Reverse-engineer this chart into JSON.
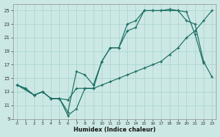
{
  "xlabel": "Humidex (Indice chaleur)",
  "bg_color": "#cce8e4",
  "grid_color": "#aad4d0",
  "line_color": "#1a6e64",
  "xlim": [
    -0.5,
    23.5
  ],
  "ylim": [
    9,
    26
  ],
  "xticks": [
    0,
    1,
    2,
    3,
    4,
    5,
    6,
    7,
    8,
    9,
    10,
    11,
    12,
    13,
    14,
    15,
    16,
    17,
    18,
    19,
    20,
    21,
    22,
    23
  ],
  "yticks": [
    9,
    11,
    13,
    15,
    17,
    19,
    21,
    23,
    25
  ],
  "line1_x": [
    0,
    1,
    2,
    3,
    4,
    5,
    6,
    7,
    8,
    9,
    10,
    11,
    12,
    13,
    14,
    15,
    16,
    17,
    18,
    19,
    20,
    21,
    22
  ],
  "line1_y": [
    14,
    13.5,
    12.5,
    13,
    12,
    12,
    9.5,
    10.5,
    13.5,
    13.5,
    17.5,
    19.5,
    19.5,
    22,
    22.5,
    25,
    25,
    25,
    25,
    25,
    24.8,
    21.5,
    17.2
  ],
  "line2_x": [
    0,
    2,
    3,
    4,
    5,
    6,
    7,
    8,
    9,
    10,
    11,
    12,
    13,
    14,
    15,
    16,
    17,
    18,
    19,
    20,
    21,
    22,
    23
  ],
  "line2_y": [
    14,
    12.5,
    13,
    12,
    12,
    10,
    16,
    15.5,
    14,
    17.5,
    19.5,
    19.5,
    23,
    23.5,
    25,
    25,
    25,
    25.2,
    25,
    23.5,
    23,
    17.5,
    15.2
  ],
  "line3_x": [
    0,
    1,
    2,
    3,
    4,
    5,
    6,
    7,
    8,
    9,
    10,
    11,
    12,
    13,
    14,
    15,
    16,
    17,
    18,
    19,
    20,
    21,
    22,
    23
  ],
  "line3_y": [
    14,
    13.5,
    12.5,
    13,
    12,
    12,
    11.8,
    13.5,
    13.5,
    13.5,
    14,
    14.5,
    15,
    15.5,
    16,
    16.5,
    17,
    17.5,
    18.5,
    19.5,
    21,
    22,
    23.5,
    25
  ]
}
